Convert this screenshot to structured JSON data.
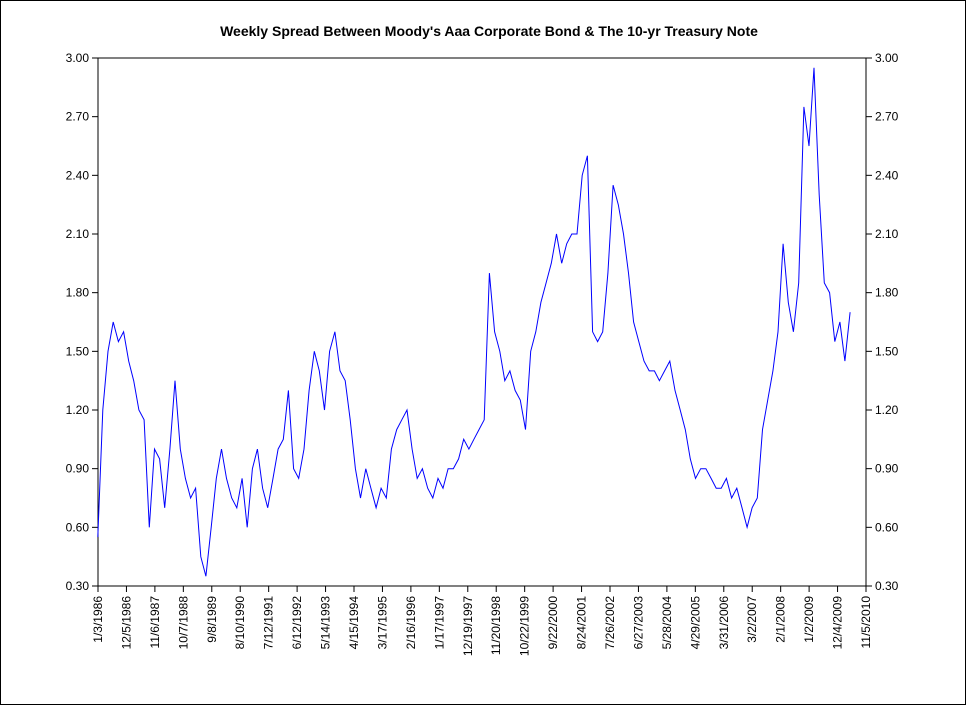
{
  "chart_data": {
    "type": "line",
    "title": "Weekly Spread Between Moody's Aaa Corporate Bond & The 10-yr Treasury Note",
    "x": [
      "1/1/1986",
      "3/1/1986",
      "5/1/1986",
      "7/1/1986",
      "9/1/1986",
      "11/1/1986",
      "1/1/1987",
      "3/1/1987",
      "5/1/1987",
      "7/1/1987",
      "9/1/1987",
      "11/1/1987",
      "1/1/1988",
      "3/1/1988",
      "5/1/1988",
      "7/1/1988",
      "9/1/1988",
      "11/1/1988",
      "1/1/1989",
      "3/1/1989",
      "5/1/1989",
      "7/1/1989",
      "9/1/1989",
      "11/1/1989",
      "1/1/1990",
      "3/1/1990",
      "5/1/1990",
      "7/1/1990",
      "9/1/1990",
      "11/1/1990",
      "1/1/1991",
      "3/1/1991",
      "5/1/1991",
      "7/1/1991",
      "9/1/1991",
      "11/1/1991",
      "1/1/1992",
      "3/1/1992",
      "5/1/1992",
      "7/1/1992",
      "9/1/1992",
      "11/1/1992",
      "1/1/1993",
      "3/1/1993",
      "5/1/1993",
      "7/1/1993",
      "9/1/1993",
      "11/1/1993",
      "1/1/1994",
      "3/1/1994",
      "5/1/1994",
      "7/1/1994",
      "9/1/1994",
      "11/1/1994",
      "1/1/1995",
      "3/1/1995",
      "5/1/1995",
      "7/1/1995",
      "9/1/1995",
      "11/1/1995",
      "1/1/1996",
      "3/1/1996",
      "5/1/1996",
      "7/1/1996",
      "9/1/1996",
      "11/1/1996",
      "1/1/1997",
      "3/1/1997",
      "5/1/1997",
      "7/1/1997",
      "9/1/1997",
      "11/1/1997",
      "1/1/1998",
      "3/1/1998",
      "5/1/1998",
      "7/1/1998",
      "9/1/1998",
      "11/1/1998",
      "1/1/1999",
      "3/1/1999",
      "5/1/1999",
      "7/1/1999",
      "9/1/1999",
      "11/1/1999",
      "1/1/2000",
      "3/1/2000",
      "5/1/2000",
      "7/1/2000",
      "9/1/2000",
      "11/1/2000",
      "1/1/2001",
      "3/1/2001",
      "5/1/2001",
      "7/1/2001",
      "9/1/2001",
      "11/1/2001",
      "1/1/2002",
      "3/1/2002",
      "5/1/2002",
      "7/1/2002",
      "9/1/2002",
      "11/1/2002",
      "1/1/2003",
      "3/1/2003",
      "5/1/2003",
      "7/1/2003",
      "9/1/2003",
      "11/1/2003",
      "1/1/2004",
      "3/1/2004",
      "5/1/2004",
      "7/1/2004",
      "9/1/2004",
      "11/1/2004",
      "1/1/2005",
      "3/1/2005",
      "5/1/2005",
      "7/1/2005",
      "9/1/2005",
      "11/1/2005",
      "1/1/2006",
      "3/1/2006",
      "5/1/2006",
      "7/1/2006",
      "9/1/2006",
      "11/1/2006",
      "1/1/2007",
      "3/1/2007",
      "5/1/2007",
      "7/1/2007",
      "9/1/2007",
      "11/1/2007",
      "1/1/2008",
      "3/1/2008",
      "5/1/2008",
      "7/1/2008",
      "9/1/2008",
      "11/1/2008",
      "1/1/2009",
      "3/1/2009",
      "5/1/2009",
      "7/1/2009",
      "9/1/2009",
      "11/1/2009",
      "1/1/2010",
      "3/1/2010",
      "5/1/2010"
    ],
    "series": [
      {
        "name": "Spread",
        "color": "#0000ff",
        "values": [
          0.55,
          1.2,
          1.5,
          1.65,
          1.55,
          1.6,
          1.45,
          1.35,
          1.2,
          1.15,
          0.6,
          1.0,
          0.95,
          0.7,
          1.0,
          1.35,
          1.0,
          0.85,
          0.75,
          0.8,
          0.45,
          0.35,
          0.6,
          0.85,
          1.0,
          0.85,
          0.75,
          0.7,
          0.85,
          0.6,
          0.9,
          1.0,
          0.8,
          0.7,
          0.85,
          1.0,
          1.05,
          1.3,
          0.9,
          0.85,
          1.0,
          1.3,
          1.5,
          1.4,
          1.2,
          1.5,
          1.6,
          1.4,
          1.35,
          1.15,
          0.9,
          0.75,
          0.9,
          0.8,
          0.7,
          0.8,
          0.75,
          1.0,
          1.1,
          1.15,
          1.2,
          1.0,
          0.85,
          0.9,
          0.8,
          0.75,
          0.85,
          0.8,
          0.9,
          0.9,
          0.95,
          1.05,
          1.0,
          1.05,
          1.1,
          1.15,
          1.9,
          1.6,
          1.5,
          1.35,
          1.4,
          1.3,
          1.25,
          1.1,
          1.5,
          1.6,
          1.75,
          1.85,
          1.95,
          2.1,
          1.95,
          2.05,
          2.1,
          2.1,
          2.4,
          2.5,
          1.6,
          1.55,
          1.6,
          1.9,
          2.35,
          2.25,
          2.1,
          1.9,
          1.65,
          1.55,
          1.45,
          1.4,
          1.4,
          1.35,
          1.4,
          1.45,
          1.3,
          1.2,
          1.1,
          0.95,
          0.85,
          0.9,
          0.9,
          0.85,
          0.8,
          0.8,
          0.85,
          0.75,
          0.8,
          0.7,
          0.6,
          0.7,
          0.75,
          1.1,
          1.25,
          1.4,
          1.6,
          2.05,
          1.75,
          1.6,
          1.85,
          2.75,
          2.55,
          2.95,
          2.3,
          1.85,
          1.8,
          1.55,
          1.65,
          1.45,
          1.7
        ]
      }
    ],
    "xlim": [
      "1/3/1986",
      "11/5/2010"
    ],
    "xticks": [
      "1/3/1986",
      "12/5/1986",
      "11/6/1987",
      "10/7/1988",
      "9/8/1989",
      "8/10/1990",
      "7/12/1991",
      "6/12/1992",
      "5/14/1993",
      "4/15/1994",
      "3/17/1995",
      "2/16/1996",
      "1/17/1997",
      "12/19/1997",
      "11/20/1998",
      "10/22/1999",
      "9/22/2000",
      "8/24/2001",
      "7/26/2002",
      "6/27/2003",
      "5/28/2004",
      "4/29/2005",
      "3/31/2006",
      "3/2/2007",
      "2/1/2008",
      "1/2/2009",
      "12/4/2009",
      "11/5/2010"
    ],
    "ylim": [
      0.3,
      3
    ],
    "yticks": [
      {
        "value": 0.3,
        "label": "0.30"
      },
      {
        "value": 0.6,
        "label": "0.60"
      },
      {
        "value": 0.9,
        "label": "0.90"
      },
      {
        "value": 1.2,
        "label": "1.20"
      },
      {
        "value": 1.5,
        "label": "1.50"
      },
      {
        "value": 1.8,
        "label": "1.80"
      },
      {
        "value": 2.1,
        "label": "2.10"
      },
      {
        "value": 2.4,
        "label": "2.40"
      },
      {
        "value": 2.7,
        "label": "2.70"
      },
      {
        "value": 3,
        "label": "3.00"
      }
    ]
  }
}
